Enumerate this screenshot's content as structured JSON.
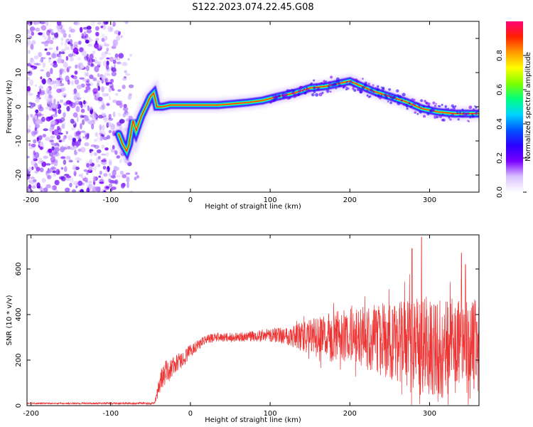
{
  "title": "S122.2023.074.22.45.G08",
  "chart_data": [
    {
      "type": "heatmap",
      "xlabel": "Height of straight line (km)",
      "ylabel": "Frequency (Hz)",
      "xlim": [
        -205,
        362
      ],
      "ylim": [
        -25,
        25
      ],
      "xticks": [
        -200,
        -100,
        0,
        100,
        200,
        300
      ],
      "yticks": [
        -20,
        -10,
        0,
        10,
        20
      ],
      "noise_region_x": [
        -205,
        -78
      ],
      "ridge": {
        "x": [
          -90,
          -85,
          -80,
          -77,
          -72,
          -68,
          -62,
          -56,
          -50,
          -46,
          -42,
          -35,
          -25,
          -10,
          0,
          20,
          35,
          50,
          70,
          90,
          110,
          130,
          150,
          170,
          190,
          200,
          215,
          230,
          250,
          270,
          290,
          310,
          330,
          350,
          362
        ],
        "y": [
          -8,
          -11,
          -13,
          -11,
          -4,
          -7,
          -3,
          0,
          3,
          4,
          0,
          0,
          0.5,
          0.5,
          0.5,
          0.5,
          0.5,
          0.8,
          1.2,
          1.8,
          3,
          4,
          5.5,
          6,
          7,
          7.5,
          6,
          4.5,
          3,
          1.5,
          -0.5,
          -1.5,
          -2,
          -2,
          -2
        ]
      },
      "colorbar": {
        "label": "Normalized spectral amplitude",
        "ticks": [
          0.0,
          0.2,
          0.4,
          0.6,
          0.8
        ],
        "tick_labels": [
          "0.0",
          "0.2",
          "0.4",
          "0.6",
          "0.8"
        ],
        "range": [
          0,
          1
        ],
        "colors": [
          "#ffffff",
          "#d9c2ff",
          "#7a00ff",
          "#2a00ff",
          "#0055ff",
          "#00d5ff",
          "#00ff7f",
          "#7fff00",
          "#ffff00",
          "#ff9a00",
          "#ff2200",
          "#ff0077"
        ]
      },
      "colors": {
        "ridge_core": "#ff2200",
        "ridge_glow": "#00ff7f",
        "ridge_halo": "#2a00ff",
        "noise": "#7a00ff"
      }
    },
    {
      "type": "line",
      "xlabel": "Height of straight line (km)",
      "ylabel": "SNR (10 * v/v)",
      "xlim": [
        -205,
        362
      ],
      "ylim": [
        0,
        750
      ],
      "xticks": [
        -200,
        -100,
        0,
        100,
        200,
        300
      ],
      "yticks": [
        0,
        200,
        400,
        600
      ],
      "series": [
        {
          "color": "#ee3333",
          "envelope": {
            "x": [
              -205,
              -45,
              -40,
              -35,
              -30,
              -25,
              -20,
              -10,
              0,
              10,
              20,
              30,
              40,
              60,
              80,
              100,
              120,
              140,
              160,
              180,
              200,
              220,
              240,
              260,
              280,
              290,
              300,
              320,
              340,
              362
            ],
            "center": [
              10,
              10,
              80,
              130,
              150,
              160,
              180,
              200,
              240,
              270,
              290,
              300,
              300,
              300,
              305,
              310,
              310,
              300,
              300,
              300,
              310,
              300,
              290,
              280,
              270,
              260,
              260,
              250,
              250,
              260
            ],
            "spread": [
              3,
              5,
              40,
              60,
              50,
              50,
              40,
              35,
              30,
              25,
              20,
              20,
              20,
              20,
              25,
              30,
              40,
              70,
              90,
              110,
              120,
              140,
              160,
              180,
              200,
              220,
              220,
              220,
              230,
              220
            ],
            "peaks_x": [
              290,
              278,
              340,
              345
            ],
            "peaks_y": [
              740,
              690,
              670,
              620
            ]
          }
        }
      ]
    }
  ]
}
